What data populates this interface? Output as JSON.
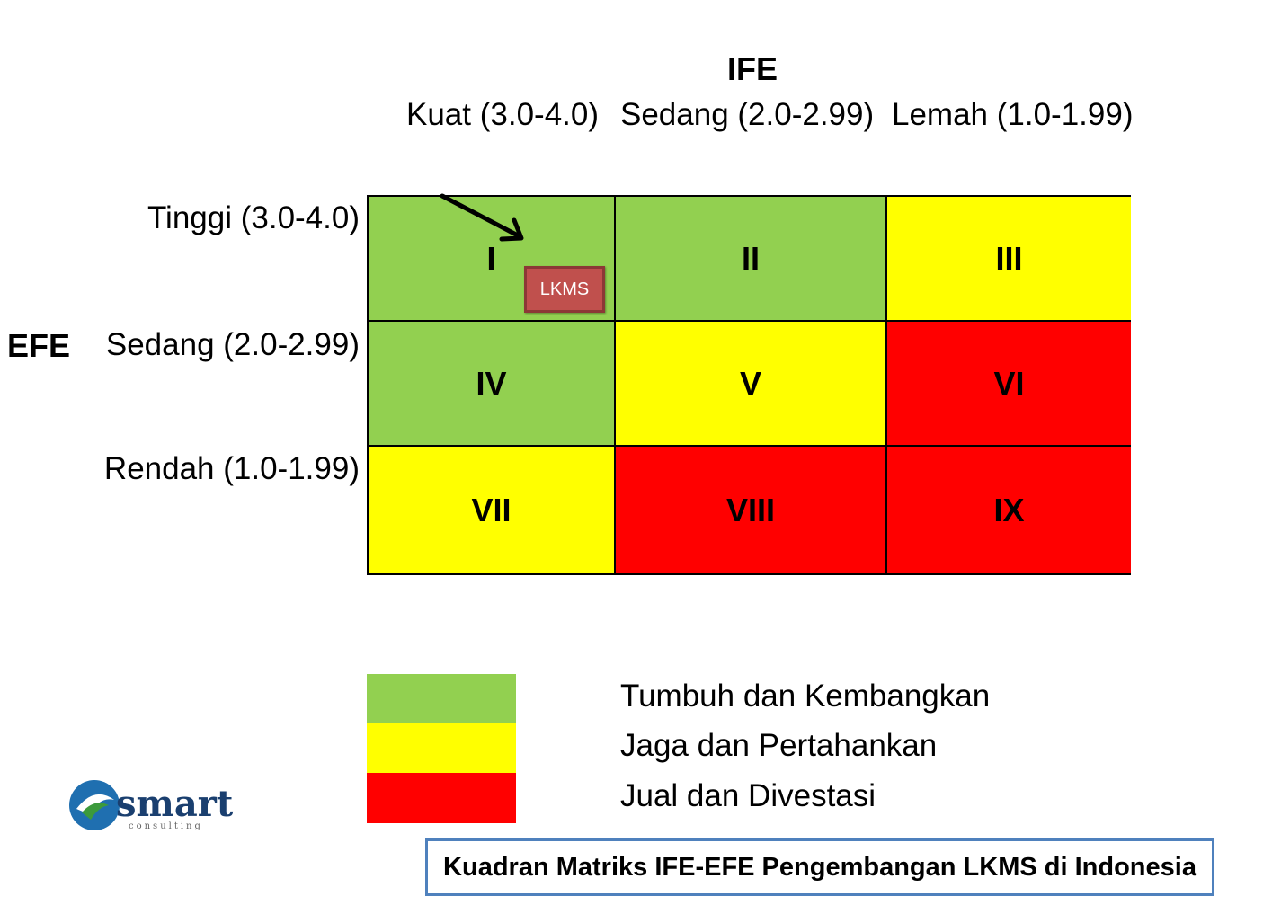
{
  "ife": {
    "title": "IFE",
    "columns": [
      "Kuat (3.0-4.0)",
      "Sedang (2.0-2.99)",
      "Lemah (1.0-1.99)"
    ]
  },
  "efe": {
    "title": "EFE",
    "rows": [
      "Tinggi (3.0-4.0)",
      "Sedang (2.0-2.99)",
      "Rendah (1.0-1.99)"
    ]
  },
  "matrix": {
    "cells": [
      {
        "label": "I",
        "color": "#92d050"
      },
      {
        "label": "II",
        "color": "#92d050"
      },
      {
        "label": "III",
        "color": "#ffff00"
      },
      {
        "label": "IV",
        "color": "#92d050"
      },
      {
        "label": "V",
        "color": "#ffff00"
      },
      {
        "label": "VI",
        "color": "#ff0000"
      },
      {
        "label": "VII",
        "color": "#ffff00"
      },
      {
        "label": "VIII",
        "color": "#ff0000"
      },
      {
        "label": "IX",
        "color": "#ff0000"
      }
    ],
    "marker": {
      "label": "LKMS",
      "cell": "I",
      "color": "#c0504d",
      "icon": "arrow-icon"
    }
  },
  "legend": [
    {
      "color": "#92d050",
      "label": "Tumbuh dan Kembangkan"
    },
    {
      "color": "#ffff00",
      "label": "Jaga dan Pertahankan"
    },
    {
      "color": "#ff0000",
      "label": "Jual dan Divestasi"
    }
  ],
  "logo": {
    "name": "smart",
    "sub": "consulting"
  },
  "caption": "Kuadran Matriks IFE-EFE Pengembangan LKMS di Indonesia",
  "colors": {
    "accent": "#4f81bd",
    "logo_blue": "#1f6fb0",
    "logo_green": "#3c9a3c"
  }
}
